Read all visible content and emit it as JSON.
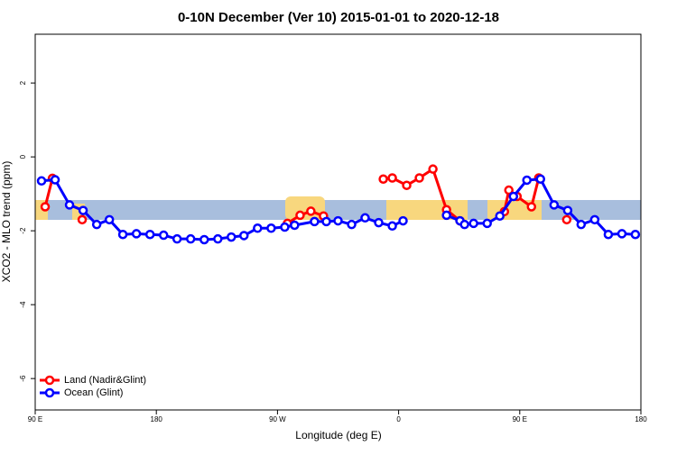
{
  "chart_data": {
    "type": "line",
    "title": "0-10N December (Ver 10)   2015-01-01 to 2020-12-18",
    "x_label": "Longitude (deg E)",
    "y_label": "XCO2 - MLO trend (ppm)",
    "xlim": [
      90,
      540
    ],
    "ylim": [
      -6.85,
      3.32
    ],
    "xticks": [
      {
        "value": 90,
        "label": "90 E"
      },
      180,
      {
        "value": 270,
        "label": "90 W"
      },
      {
        "value": 360,
        "label": "0"
      },
      {
        "value": 450,
        "label": "90 E"
      },
      {
        "value": 540,
        "label": "180"
      }
    ],
    "yticks": [
      2,
      0,
      -2,
      -4,
      -6
    ],
    "legend": "bottom-left",
    "series": [
      {
        "name": "Land (Nadir&Glint)",
        "color": "#ff0000",
        "x": [
          97.4,
          102.8,
          null,
          124.9,
          null,
          277.4,
          286.8,
          294.8,
          304.2,
          null,
          348.6,
          355.3,
          366,
          375.4,
          385.5,
          395.6,
          405.6,
          null,
          438.6,
          441.9,
          448,
          458.7,
          464.1,
          null,
          484.9
        ],
        "values": [
          -1.35,
          -0.58,
          null,
          -1.7,
          null,
          -1.8,
          -1.58,
          -1.47,
          -1.6,
          null,
          -0.6,
          -0.57,
          -0.77,
          -0.57,
          -0.33,
          -1.43,
          -1.73,
          null,
          -1.48,
          -0.9,
          -1.07,
          -1.35,
          -0.57,
          null,
          -1.7
        ]
      },
      {
        "name": "Ocean (Glint)",
        "color": "#0000ff",
        "x": [
          94.7,
          104.8,
          115.5,
          125.6,
          135.7,
          145.1,
          155.1,
          165.2,
          175.3,
          185.4,
          195.4,
          205.5,
          215.6,
          225.7,
          235.7,
          245.1,
          255.2,
          265.3,
          275.4,
          282.7,
          297.5,
          306.3,
          315,
          325.1,
          335.1,
          345.2,
          355.3,
          363.3,
          null,
          395.6,
          405.6,
          409,
          415.7,
          425.8,
          435.2,
          445.3,
          455.3,
          465.4,
          475.5,
          485.6,
          495.6,
          505.7,
          515.8,
          525.9,
          535.9
        ],
        "values": [
          -0.65,
          -0.62,
          -1.3,
          -1.45,
          -1.83,
          -1.7,
          -2.1,
          -2.08,
          -2.1,
          -2.12,
          -2.22,
          -2.22,
          -2.24,
          -2.22,
          -2.17,
          -2.13,
          -1.93,
          -1.93,
          -1.9,
          -1.85,
          -1.75,
          -1.75,
          -1.73,
          -1.83,
          -1.65,
          -1.78,
          -1.87,
          -1.73,
          null,
          -1.58,
          -1.73,
          -1.83,
          -1.8,
          -1.8,
          -1.6,
          -1.07,
          -0.63,
          -0.6,
          -1.3,
          -1.45,
          -1.83,
          -1.7,
          -2.1,
          -2.08,
          -2.1
        ]
      }
    ]
  }
}
